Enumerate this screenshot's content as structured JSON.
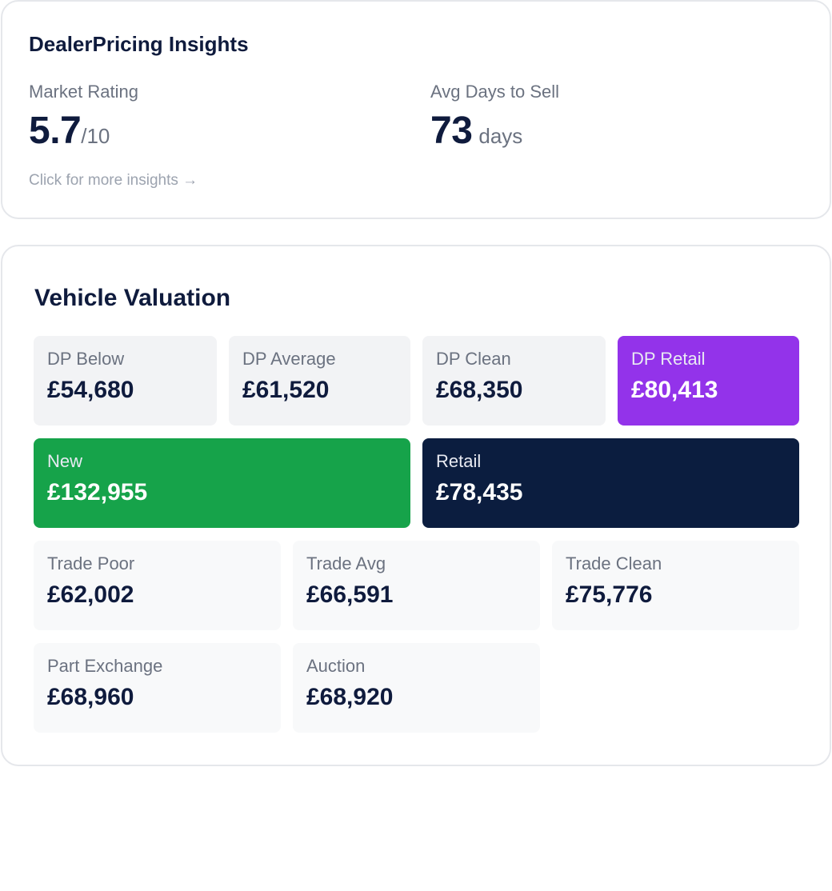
{
  "insights": {
    "title": "DealerPricing Insights",
    "market_rating_label": "Market Rating",
    "market_rating_value": "5.7",
    "market_rating_suffix": "/10",
    "days_label": "Avg Days to Sell",
    "days_value": "73",
    "days_suffix": "days",
    "more_link": "Click for more insights →"
  },
  "valuation": {
    "title": "Vehicle Valuation",
    "colors": {
      "dp_retail": "#9333ea",
      "new": "#16a34a",
      "retail": "#0b1d3f"
    },
    "tiles": [
      {
        "label": "DP Below",
        "value": "£54,680"
      },
      {
        "label": "DP Average",
        "value": "£61,520"
      },
      {
        "label": "DP Clean",
        "value": "£68,350"
      },
      {
        "label": "DP Retail",
        "value": "£80,413"
      },
      {
        "label": "New",
        "value": "£132,955"
      },
      {
        "label": "Retail",
        "value": "£78,435"
      },
      {
        "label": "Trade Poor",
        "value": "£62,002"
      },
      {
        "label": "Trade Avg",
        "value": "£66,591"
      },
      {
        "label": "Trade Clean",
        "value": "£75,776"
      },
      {
        "label": "Part Exchange",
        "value": "£68,960"
      },
      {
        "label": "Auction",
        "value": "£68,920"
      }
    ]
  }
}
